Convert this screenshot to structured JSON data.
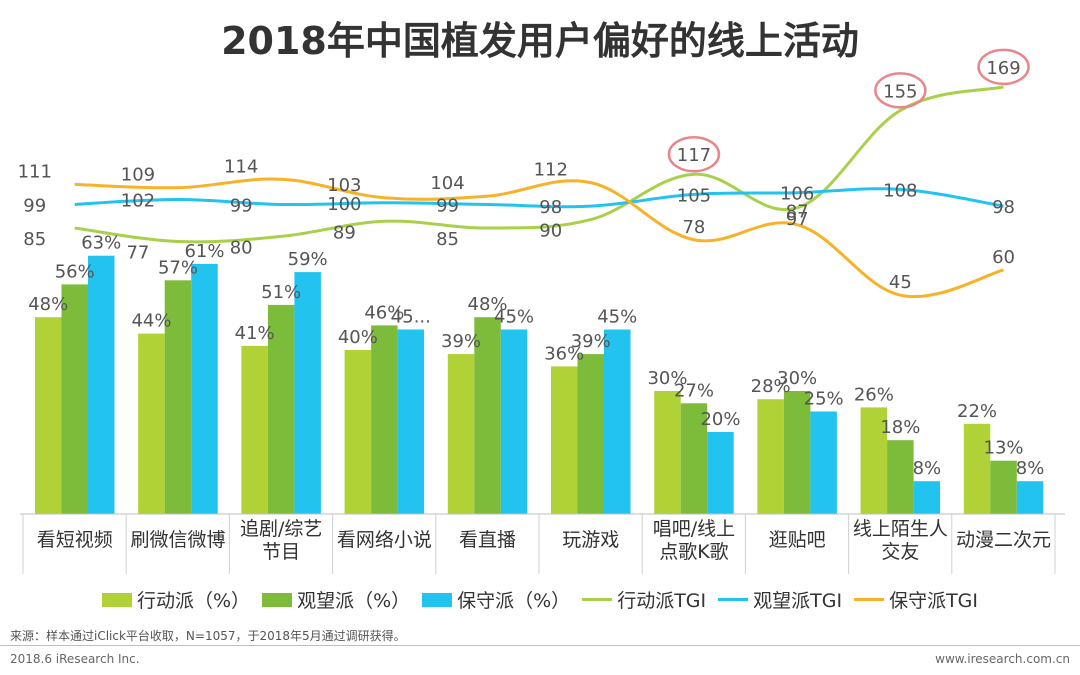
{
  "title": "2018年中国植发用户偏好的线上活动",
  "source": "来源：样本通过iClick平台收取，N=1057，于2018年5月通过调研获得。",
  "footer_left": "2018.6 iResearch Inc.",
  "footer_right": "www.iresearch.com.cn",
  "legend": [
    {
      "label": "行动派（%）",
      "kind": "box",
      "color": "#b0d236"
    },
    {
      "label": "观望派（%）",
      "kind": "box",
      "color": "#7dbb3b"
    },
    {
      "label": "保守派（%）",
      "kind": "box",
      "color": "#22c3ee"
    },
    {
      "label": "行动派TGI",
      "kind": "line",
      "color": "#a9d04a"
    },
    {
      "label": "观望派TGI",
      "kind": "line",
      "color": "#22c3ee"
    },
    {
      "label": "保守派TGI",
      "kind": "line",
      "color": "#f8b22a"
    }
  ],
  "chart_data": {
    "type": "bar",
    "categories": [
      "看短视频",
      "刷微信微博",
      "追剧/综艺\n节目",
      "看网络小说",
      "看直播",
      "玩游戏",
      "唱吧/线上\n点歌K歌",
      "逛贴吧",
      "线上陌生人\n交友",
      "动漫二次元"
    ],
    "series": [
      {
        "name": "行动派（%）",
        "values": [
          48,
          44,
          41,
          40,
          39,
          36,
          30,
          28,
          26,
          22
        ],
        "labels": [
          "48%",
          "44%",
          "41%",
          "40%",
          "39%",
          "36%",
          "30%",
          "28%",
          "26%",
          "22%"
        ],
        "color": "#b0d236"
      },
      {
        "name": "观望派（%）",
        "values": [
          56,
          57,
          51,
          46,
          48,
          39,
          27,
          30,
          18,
          13
        ],
        "labels": [
          "56%",
          "57%",
          "51%",
          "46%",
          "48%",
          "39%",
          "27%",
          "30%",
          "18%",
          "13%"
        ],
        "color": "#7dbb3b"
      },
      {
        "name": "保守派（%）",
        "values": [
          63,
          61,
          59,
          45,
          45,
          45,
          20,
          25,
          8,
          8
        ],
        "labels": [
          "63%",
          "61%",
          "59%",
          "45...",
          "45%",
          "45%",
          "20%",
          "25%",
          "8%",
          "8%"
        ],
        "color": "#22c3ee"
      }
    ],
    "lines": [
      {
        "name": "行动派TGI",
        "values": [
          85,
          77,
          80,
          89,
          85,
          90,
          117,
          97,
          155,
          169
        ],
        "color": "#a9d04a",
        "highlighted": [
          6,
          8,
          9
        ]
      },
      {
        "name": "观望派TGI",
        "values": [
          99,
          102,
          99,
          100,
          99,
          98,
          105,
          106,
          108,
          98
        ],
        "color": "#22c3ee",
        "highlighted": []
      },
      {
        "name": "保守派TGI",
        "values": [
          111,
          109,
          114,
          103,
          104,
          112,
          78,
          87,
          45,
          60
        ],
        "color": "#f8b22a",
        "highlighted": []
      }
    ],
    "highlight_color": "#e8868a",
    "grid": false,
    "legend_position": "bottom"
  }
}
